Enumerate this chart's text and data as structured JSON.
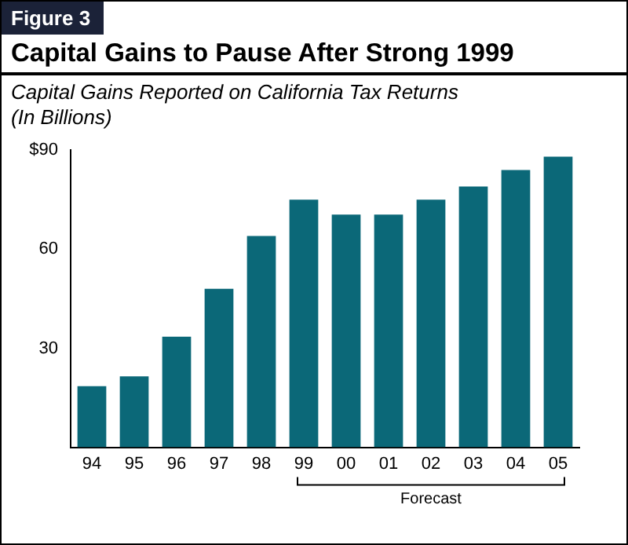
{
  "chart_data": {
    "type": "bar",
    "title": "Capital Gains to Pause After Strong 1999",
    "subtitle": "Capital Gains Reported on California Tax Returns\n(In Billions)",
    "categories": [
      "94",
      "95",
      "96",
      "97",
      "98",
      "99",
      "00",
      "01",
      "02",
      "03",
      "04",
      "05"
    ],
    "values": [
      18.5,
      21.5,
      33.5,
      48,
      64,
      75,
      70.5,
      70.5,
      75,
      79,
      84,
      88
    ],
    "color": "#0b6878",
    "ylim": [
      0,
      90
    ],
    "yticks": [
      {
        "value": 90,
        "label": "$90"
      },
      60,
      30
    ],
    "grid": false,
    "legend": false,
    "annotations": [
      "Figure 3",
      "Forecast"
    ]
  }
}
